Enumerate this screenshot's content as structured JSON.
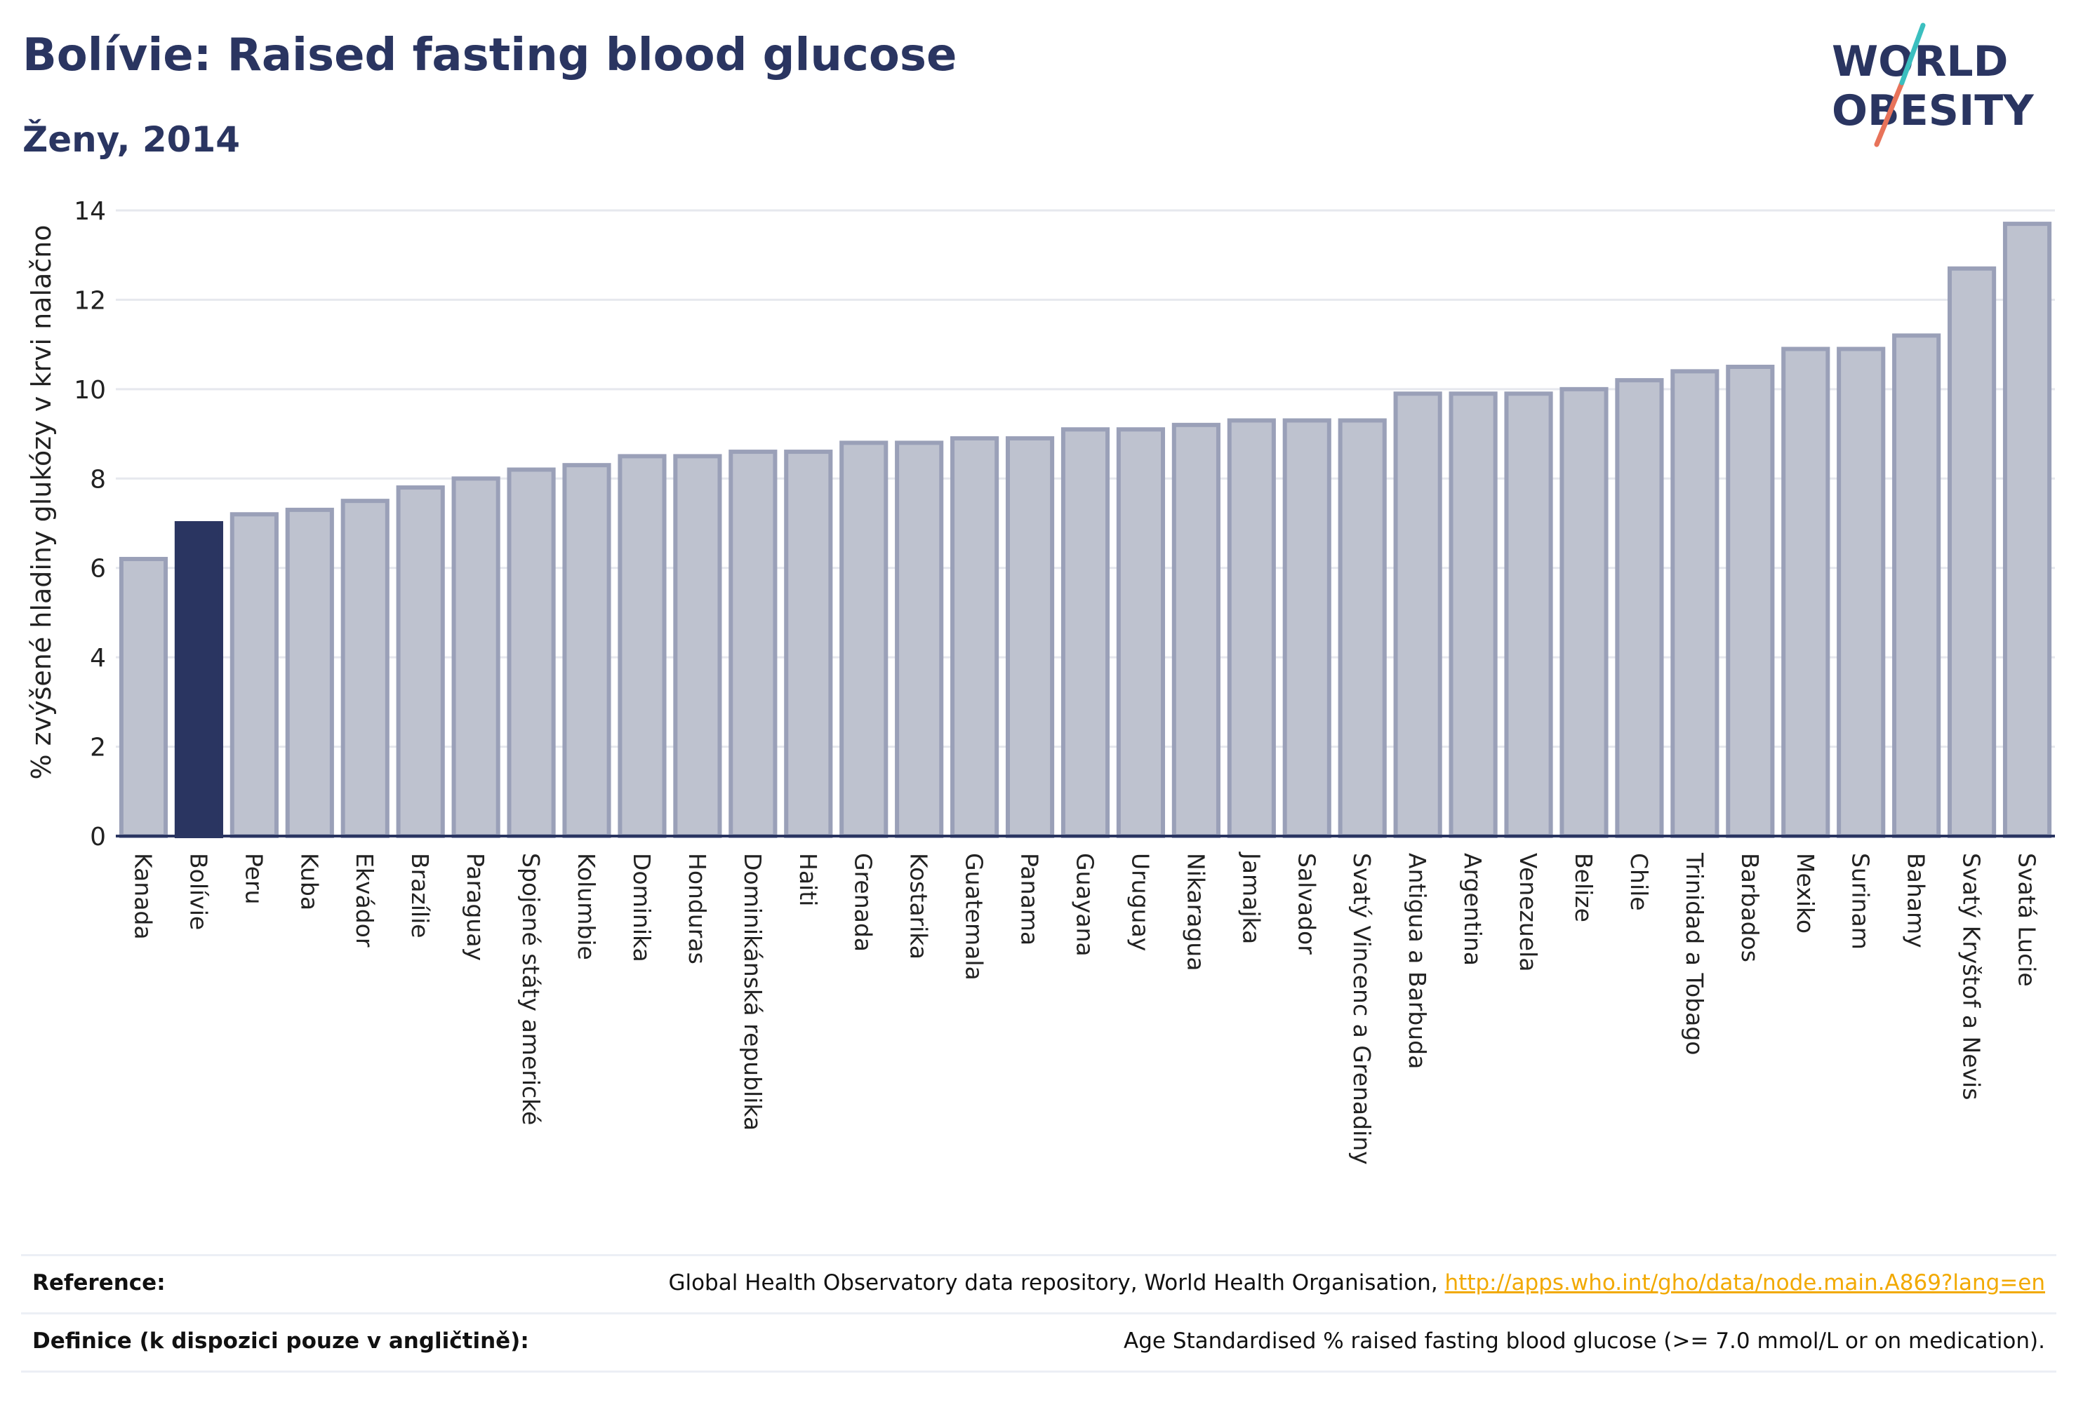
{
  "title": "Bolívie: Raised fasting blood glucose",
  "subtitle": "Ženy, 2014",
  "logo": {
    "line1": "WORLD",
    "line2": "OBESITY"
  },
  "colors": {
    "highlight": "#2a3561",
    "bar_fill": "#bec2cf",
    "bar_stroke": "#9aa0b8",
    "text": "#2a3561",
    "link": "#f2a900"
  },
  "chart_data": {
    "type": "bar",
    "title": "Bolívie: Raised fasting blood glucose",
    "subtitle": "Ženy, 2014",
    "xlabel": "",
    "ylabel": "% zvýšené hladiny glukózy v krvi nalačno",
    "ylim": [
      0,
      14
    ],
    "yticks": [
      0,
      2,
      4,
      6,
      8,
      10,
      12,
      14
    ],
    "grid": true,
    "highlight": "Bolívie",
    "categories": [
      "Kanada",
      "Bolívie",
      "Peru",
      "Kuba",
      "Ekvádor",
      "Brazílie",
      "Paraguay",
      "Spojené státy americké",
      "Kolumbie",
      "Dominika",
      "Honduras",
      "Dominikánská republika",
      "Haiti",
      "Grenada",
      "Kostarika",
      "Guatemala",
      "Panama",
      "Guayana",
      "Uruguay",
      "Nikaragua",
      "Jamajka",
      "Salvador",
      "Svatý Vincenc a Grenadiny",
      "Antigua a Barbuda",
      "Argentina",
      "Venezuela",
      "Belize",
      "Chile",
      "Trinidad a Tobago",
      "Barbados",
      "Mexiko",
      "Surinam",
      "Bahamy",
      "Svatý Kryštof a Nevis",
      "Svatá Lucie"
    ],
    "values": [
      6.2,
      7.0,
      7.2,
      7.3,
      7.5,
      7.8,
      8.0,
      8.2,
      8.3,
      8.5,
      8.5,
      8.6,
      8.6,
      8.8,
      8.8,
      8.9,
      8.9,
      9.1,
      9.1,
      9.2,
      9.3,
      9.3,
      9.3,
      9.9,
      9.9,
      9.9,
      10.0,
      10.2,
      10.4,
      10.5,
      10.9,
      10.9,
      11.2,
      12.7,
      13.7
    ]
  },
  "footer": {
    "reference_label": "Reference:",
    "reference_text": "Global Health Observatory data repository, World Health Organisation, ",
    "reference_link": "http://apps.who.int/gho/data/node.main.A869?lang=en",
    "definition_label": "Definice (k dispozici pouze v angličtině):",
    "definition_text": "Age Standardised % raised fasting blood glucose (>= 7.0 mmol/L or on medication)."
  }
}
